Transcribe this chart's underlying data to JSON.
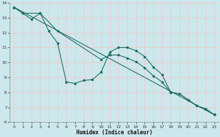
{
  "xlabel": "Humidex (Indice chaleur)",
  "bg_color": "#cce8ec",
  "grid_color": "#f0c8c8",
  "line_color": "#1a6b60",
  "xlim": [
    -0.5,
    23.5
  ],
  "ylim": [
    6,
    14
  ],
  "xticks": [
    0,
    1,
    2,
    3,
    4,
    5,
    6,
    7,
    8,
    9,
    10,
    11,
    12,
    13,
    14,
    15,
    16,
    17,
    18,
    19,
    20,
    21,
    22,
    23
  ],
  "yticks": [
    6,
    7,
    8,
    9,
    10,
    11,
    12,
    13,
    14
  ],
  "series1_x": [
    0,
    1,
    2,
    3,
    4,
    5,
    6,
    7,
    8,
    9,
    10,
    11,
    12,
    13,
    14,
    15,
    16,
    17,
    18,
    19,
    20,
    21,
    22,
    23
  ],
  "series1_y": [
    13.7,
    13.3,
    12.9,
    13.3,
    12.1,
    11.3,
    8.7,
    8.6,
    8.8,
    8.85,
    9.35,
    10.7,
    11.0,
    11.0,
    10.8,
    10.4,
    9.7,
    9.2,
    8.0,
    7.9,
    7.5,
    7.1,
    6.9,
    6.5
  ],
  "series2_x": [
    0,
    1,
    3,
    5,
    10,
    11,
    12,
    13,
    14,
    15,
    16,
    17,
    18,
    19,
    20,
    21,
    22,
    23
  ],
  "series2_y": [
    13.7,
    13.3,
    13.3,
    12.1,
    10.2,
    10.5,
    10.5,
    10.3,
    10.05,
    9.65,
    9.1,
    8.7,
    8.0,
    7.9,
    7.5,
    7.1,
    6.9,
    6.5
  ],
  "series3_x": [
    0,
    23
  ],
  "series3_y": [
    13.7,
    6.5
  ]
}
